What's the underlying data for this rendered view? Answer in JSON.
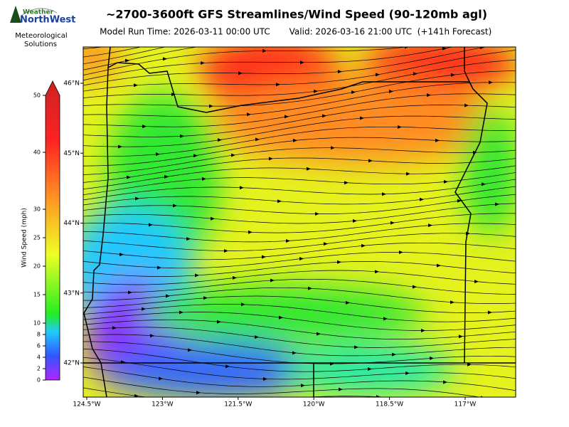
{
  "header": {
    "title": "~2700-3600ft GFS Streamlines/Wind Speed (90-120mb agl)",
    "model_run": "Model Run Time: 2026-03-11 00:00 UTC",
    "valid": "Valid: 2026-03-16 21:00 UTC  (+141h Forecast)"
  },
  "logo": {
    "brand_top": "Weather",
    "brand_main": "NorthWest",
    "line1": "Meteorological",
    "line2": "Solutions"
  },
  "colorbar": {
    "label": "Wind Speed (mph)",
    "lim": [
      0,
      50
    ],
    "ticks": [
      0,
      2,
      4,
      6,
      8,
      10,
      15,
      20,
      25,
      30,
      40,
      50
    ]
  },
  "map": {
    "lat_ticks": [
      {
        "value": 46,
        "label": "46°N"
      },
      {
        "value": 45,
        "label": "45°N"
      },
      {
        "value": 44,
        "label": "44°N"
      },
      {
        "value": 43,
        "label": "43°N"
      },
      {
        "value": 42,
        "label": "42°N"
      }
    ],
    "lon_ticks": [
      {
        "value": -124.5,
        "label": "124.5°W"
      },
      {
        "value": -123,
        "label": "123°W"
      },
      {
        "value": -121.5,
        "label": "121.5°W"
      },
      {
        "value": -120,
        "label": "120°W"
      },
      {
        "value": -118.5,
        "label": "118.5°W"
      },
      {
        "value": -117,
        "label": "117°W"
      }
    ]
  }
}
